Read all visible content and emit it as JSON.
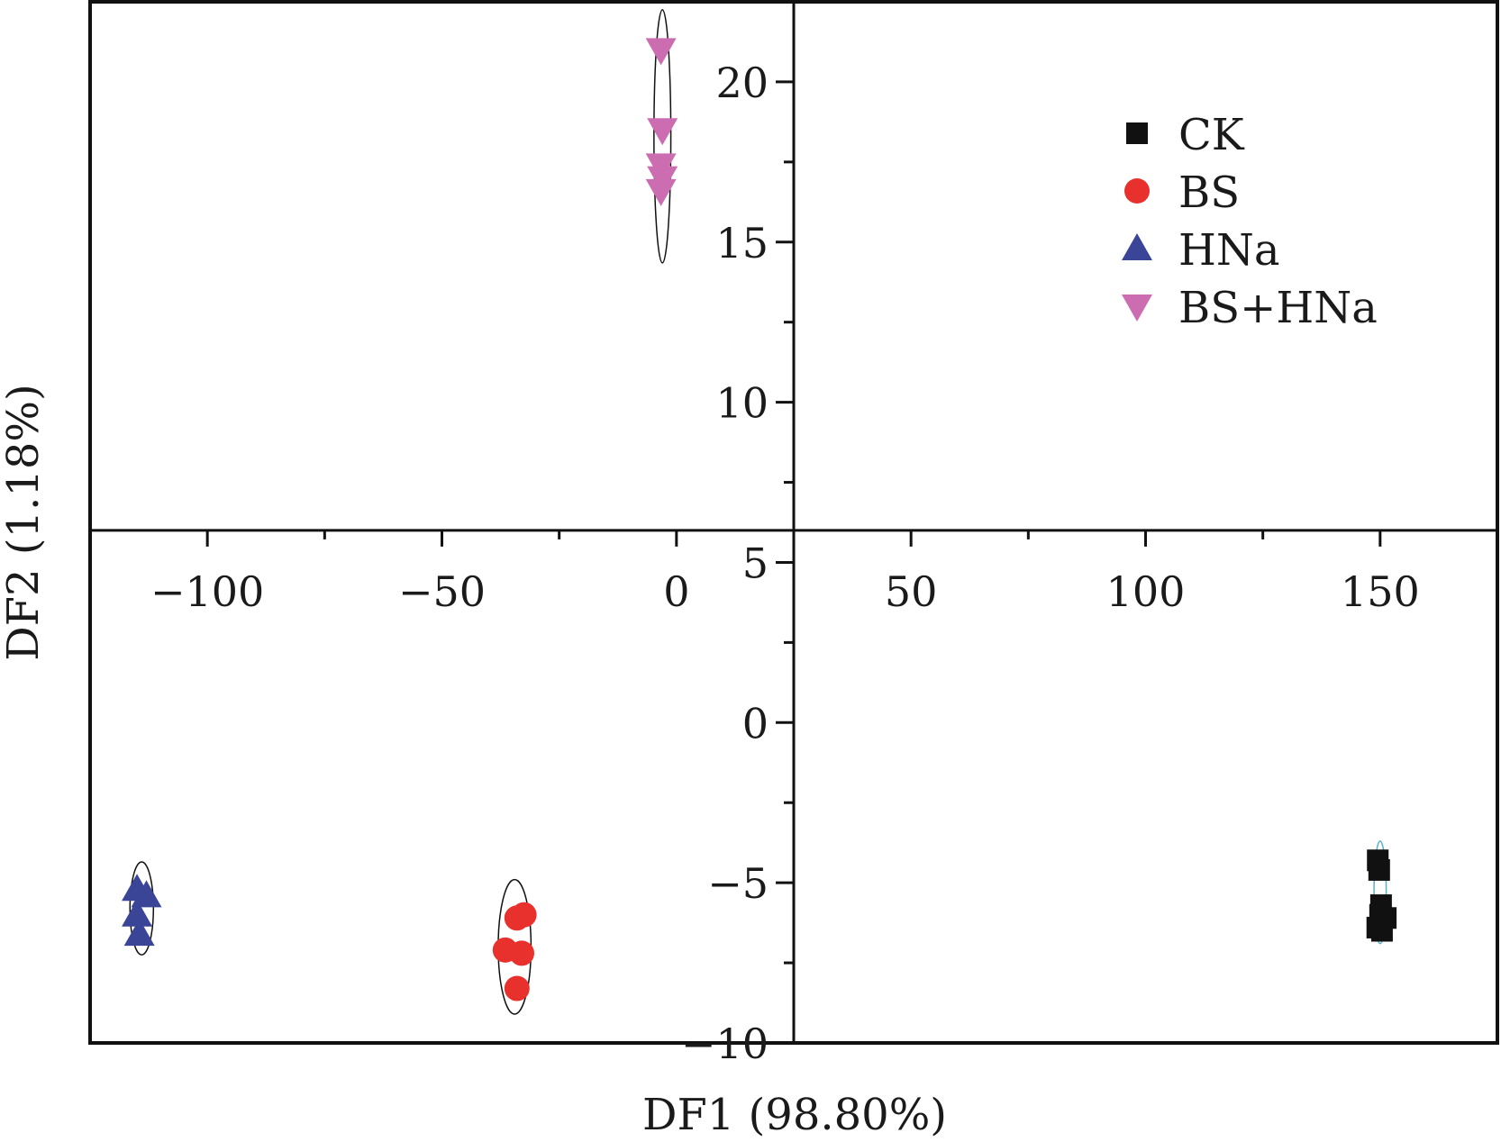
{
  "chart_data": {
    "type": "scatter",
    "title": "",
    "xlabel": "DF1 (98.80%)",
    "ylabel": "DF2 (1.18%)",
    "xlim": [
      -125,
      175
    ],
    "ylim": [
      -10,
      22.5
    ],
    "xticks": [
      -100,
      -50,
      0,
      50,
      100,
      150
    ],
    "xtick_labels": [
      "−100",
      "−50",
      "0",
      "50",
      "100",
      "150"
    ],
    "yticks": [
      -10,
      -5,
      0,
      5,
      10,
      15,
      20
    ],
    "ytick_labels": [
      "−10",
      "−5",
      "0",
      "5",
      "10",
      "15",
      "20"
    ],
    "axes_cross_at": [
      25,
      6
    ],
    "grid": false,
    "legend_position": "top-right",
    "series": [
      {
        "name": "CK",
        "marker": "square",
        "color": "#111111",
        "points": [
          [
            149.5,
            -4.3
          ],
          [
            149.8,
            -4.6
          ],
          [
            150.2,
            -5.7
          ],
          [
            150.0,
            -6.0
          ],
          [
            151.2,
            -6.1
          ],
          [
            149.4,
            -6.4
          ],
          [
            150.4,
            -6.5
          ]
        ]
      },
      {
        "name": "BS",
        "marker": "circle",
        "color": "#e8302c",
        "points": [
          [
            -34.0,
            -6.1
          ],
          [
            -32.5,
            -6.0
          ],
          [
            -36.5,
            -7.1
          ],
          [
            -33.0,
            -7.2
          ],
          [
            -34.0,
            -8.3
          ]
        ]
      },
      {
        "name": "HNa",
        "marker": "triangle-up",
        "color": "#3b4597",
        "points": [
          [
            -115.0,
            -5.2
          ],
          [
            -113.0,
            -5.4
          ],
          [
            -115.0,
            -6.0
          ],
          [
            -114.5,
            -6.6
          ]
        ]
      },
      {
        "name": "BS+HNa",
        "marker": "triangle-down",
        "color": "#cc6db1",
        "points": [
          [
            -3.3,
            21.0
          ],
          [
            -3.0,
            18.5
          ],
          [
            -3.3,
            17.4
          ],
          [
            -3.0,
            17.0
          ],
          [
            -3.3,
            16.6
          ]
        ]
      }
    ],
    "ellipses": [
      {
        "group": "CK",
        "cx": 150.0,
        "cy": -5.3,
        "rx": 1.3,
        "ry": 1.6,
        "stroke": "#5ab0c8"
      },
      {
        "group": "BS",
        "cx": -34.5,
        "cy": -7.0,
        "rx": 3.5,
        "ry": 2.1,
        "stroke": "#111111"
      },
      {
        "group": "HNa",
        "cx": -114.0,
        "cy": -5.8,
        "rx": 2.5,
        "ry": 1.45,
        "stroke": "#111111"
      },
      {
        "group": "BS+HNa",
        "cx": -3.0,
        "cy": 18.3,
        "rx": 1.8,
        "ry": 3.95,
        "stroke": "#111111"
      }
    ]
  }
}
